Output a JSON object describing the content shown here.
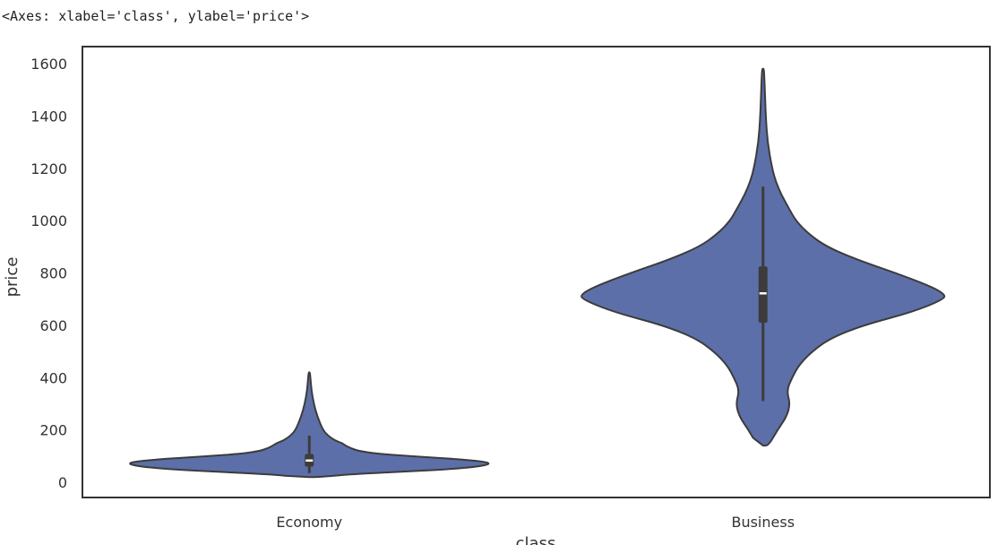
{
  "output_repr": "<Axes: xlabel='class', ylabel='price'>",
  "chart_data": {
    "type": "violin",
    "categories": [
      "Economy",
      "Business"
    ],
    "xlabel": "class",
    "ylabel": "price",
    "ylim": [
      -60,
      1660
    ],
    "yticks": [
      0,
      200,
      400,
      600,
      800,
      1000,
      1200,
      1400,
      1600
    ],
    "grid": false,
    "legend": "none",
    "colors": {
      "fill": "#5d6fa8",
      "edge": "#3c3c3c",
      "box": "#3c3c3c",
      "median": "#ffffff",
      "spine": "#333333"
    },
    "violins": [
      {
        "category": "Economy",
        "min": 20,
        "max": 420,
        "q1": 60,
        "median": 83,
        "q3": 108,
        "whisker_low": 35,
        "whisker_high": 178,
        "density": [
          [
            20,
            0.05
          ],
          [
            30,
            0.22
          ],
          [
            40,
            0.5
          ],
          [
            50,
            0.78
          ],
          [
            60,
            0.93
          ],
          [
            70,
            1.0
          ],
          [
            80,
            0.96
          ],
          [
            90,
            0.78
          ],
          [
            100,
            0.55
          ],
          [
            110,
            0.36
          ],
          [
            120,
            0.27
          ],
          [
            130,
            0.23
          ],
          [
            140,
            0.2
          ],
          [
            150,
            0.18
          ],
          [
            160,
            0.14
          ],
          [
            180,
            0.1
          ],
          [
            200,
            0.075
          ],
          [
            250,
            0.045
          ],
          [
            300,
            0.025
          ],
          [
            350,
            0.012
          ],
          [
            400,
            0.006
          ],
          [
            420,
            0.003
          ]
        ]
      },
      {
        "category": "Business",
        "min": 140,
        "max": 1580,
        "q1": 610,
        "median": 722,
        "q3": 825,
        "whisker_low": 310,
        "whisker_high": 1130,
        "density": [
          [
            140,
            0.03
          ],
          [
            200,
            0.08
          ],
          [
            250,
            0.13
          ],
          [
            300,
            0.15
          ],
          [
            350,
            0.13
          ],
          [
            400,
            0.16
          ],
          [
            450,
            0.2
          ],
          [
            500,
            0.27
          ],
          [
            550,
            0.37
          ],
          [
            600,
            0.55
          ],
          [
            650,
            0.82
          ],
          [
            700,
            1.0
          ],
          [
            720,
            1.0
          ],
          [
            750,
            0.92
          ],
          [
            800,
            0.73
          ],
          [
            850,
            0.52
          ],
          [
            900,
            0.35
          ],
          [
            950,
            0.25
          ],
          [
            1000,
            0.18
          ],
          [
            1050,
            0.14
          ],
          [
            1100,
            0.1
          ],
          [
            1150,
            0.07
          ],
          [
            1200,
            0.05
          ],
          [
            1300,
            0.025
          ],
          [
            1400,
            0.015
          ],
          [
            1500,
            0.01
          ],
          [
            1580,
            0.005
          ]
        ]
      }
    ]
  }
}
